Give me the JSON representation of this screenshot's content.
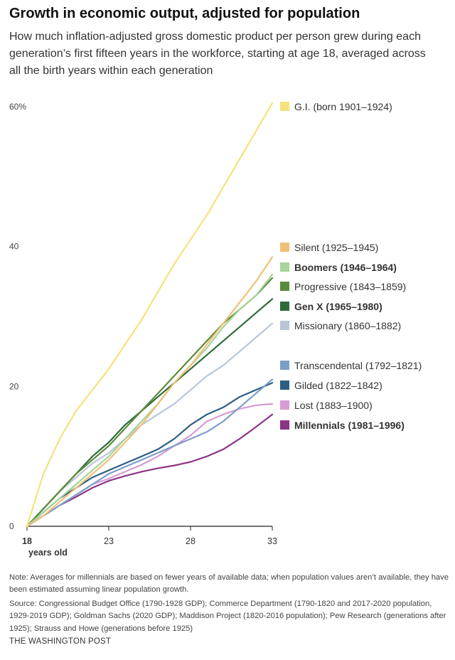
{
  "title": "Growth in economic output, adjusted for population",
  "subtitle": "How much inflation-adjusted gross domestic product per person grew during each generation’s first fifteen years in the workforce, starting at age 18, averaged across all the birth years within each generation",
  "chart_data": {
    "type": "line",
    "title": "Growth in economic output, adjusted for population",
    "xlabel": "years old",
    "ylabel": "",
    "xlim": [
      18,
      33
    ],
    "ylim": [
      0,
      60
    ],
    "x_ticks": [
      {
        "value": 18,
        "label": "18"
      },
      {
        "value": 23,
        "label": "23"
      },
      {
        "value": 28,
        "label": "28"
      },
      {
        "value": 33,
        "label": "33"
      }
    ],
    "x_unit_label": "years old",
    "y_ticks": [
      {
        "value": 0,
        "label": "0"
      },
      {
        "value": 20,
        "label": "20"
      },
      {
        "value": 40,
        "label": "40"
      },
      {
        "value": 60,
        "label": "60%"
      }
    ],
    "grid": false,
    "legend": "right (direct labels)",
    "x": [
      18,
      19,
      20,
      21,
      22,
      23,
      24,
      25,
      26,
      27,
      28,
      29,
      30,
      31,
      32,
      33
    ],
    "series": [
      {
        "name": "G.I. (born 1901–1924)",
        "bold": false,
        "color": "#f5e27a",
        "values": [
          0,
          7.5,
          12.5,
          16.5,
          19.5,
          22.5,
          26.0,
          29.5,
          33.5,
          37.5,
          41.0,
          44.5,
          48.5,
          52.5,
          56.5,
          60.5
        ]
      },
      {
        "name": "Silent (1925–1945)",
        "bold": false,
        "color": "#f0c077",
        "values": [
          0,
          1.5,
          3.5,
          5.5,
          7.5,
          9.5,
          12.0,
          14.5,
          17.5,
          20.5,
          23.0,
          26.0,
          29.0,
          32.0,
          35.0,
          38.5
        ]
      },
      {
        "name": "Boomers (1946–1964)",
        "bold": true,
        "color": "#a6d49a",
        "values": [
          0,
          2.0,
          4.0,
          6.0,
          8.0,
          10.0,
          12.5,
          15.0,
          17.5,
          20.5,
          23.0,
          25.5,
          28.5,
          31.0,
          33.0,
          36.0
        ]
      },
      {
        "name": "Progressive (1843–1859)",
        "bold": false,
        "color": "#5b8c3c",
        "values": [
          0,
          2.5,
          5.0,
          7.5,
          9.5,
          11.5,
          14.0,
          16.5,
          19.0,
          21.5,
          24.0,
          26.5,
          29.0,
          31.0,
          33.0,
          35.5
        ]
      },
      {
        "name": "Gen X (1965–1980)",
        "bold": true,
        "color": "#2e6b3a",
        "values": [
          0,
          2.5,
          5.0,
          7.5,
          10.0,
          12.0,
          14.5,
          16.5,
          18.5,
          20.5,
          22.5,
          24.5,
          26.5,
          28.5,
          30.5,
          32.5
        ]
      },
      {
        "name": "Missionary (1860–1882)",
        "bold": false,
        "color": "#b9c6d8",
        "values": [
          0,
          2.5,
          5.0,
          7.0,
          9.0,
          10.5,
          12.5,
          14.5,
          16.0,
          17.5,
          19.5,
          21.5,
          23.0,
          25.0,
          27.0,
          29.0
        ]
      },
      {
        "name": "Transcendental (1792–1821)",
        "bold": false,
        "color": "#7b9fc8",
        "values": [
          0,
          1.5,
          3.0,
          4.5,
          6.0,
          7.5,
          8.5,
          9.5,
          10.5,
          11.5,
          12.5,
          13.5,
          15.0,
          17.0,
          19.0,
          21.0
        ]
      },
      {
        "name": "Gilded (1822–1842)",
        "bold": false,
        "color": "#2c5e82",
        "values": [
          0,
          2.0,
          4.0,
          5.5,
          7.0,
          8.0,
          9.0,
          10.0,
          11.0,
          12.5,
          14.5,
          16.0,
          17.0,
          18.5,
          19.5,
          20.5
        ]
      },
      {
        "name": "Lost (1883–1900)",
        "bold": false,
        "color": "#d79bd4",
        "values": [
          0,
          1.5,
          3.0,
          4.5,
          6.0,
          6.8,
          7.8,
          8.8,
          10.0,
          11.5,
          13.0,
          15.0,
          16.0,
          16.8,
          17.3,
          17.5
        ]
      },
      {
        "name": "Millennials (1981–1996)",
        "bold": true,
        "color": "#8c3485",
        "values": [
          0,
          1.5,
          3.0,
          4.2,
          5.5,
          6.5,
          7.2,
          7.8,
          8.3,
          8.7,
          9.2,
          10.0,
          11.0,
          12.5,
          14.2,
          16.0
        ]
      }
    ],
    "legend_entries": [
      "G.I. (born 1901–1924)",
      "Silent (1925–1945)",
      "Boomers (1946–1964)",
      "Progressive (1843–1859)",
      "Gen X (1965–1980)",
      "Missionary (1860–1882)",
      "Transcendental (1792–1821)",
      "Gilded (1822–1842)",
      "Lost (1883–1900)",
      "Millennials (1981–1996)"
    ]
  },
  "notes": {
    "note": "Note: Averages for millennials are based on fewer years of available data; when population values aren’t available, they have been estimated assuming linear population growth.",
    "source": "Source: Congressional Budget Office (1790-1928 GDP); Commerce Department (1790-1820 and 2017-2020 population, 1929-2019 GDP); Goldman Sachs (2020 GDP); Maddison Project (1820-2016 population); Pew Research (generations after 1925); Strauss and Howe (generations before 1925)"
  },
  "brand": "THE WASHINGTON POST"
}
